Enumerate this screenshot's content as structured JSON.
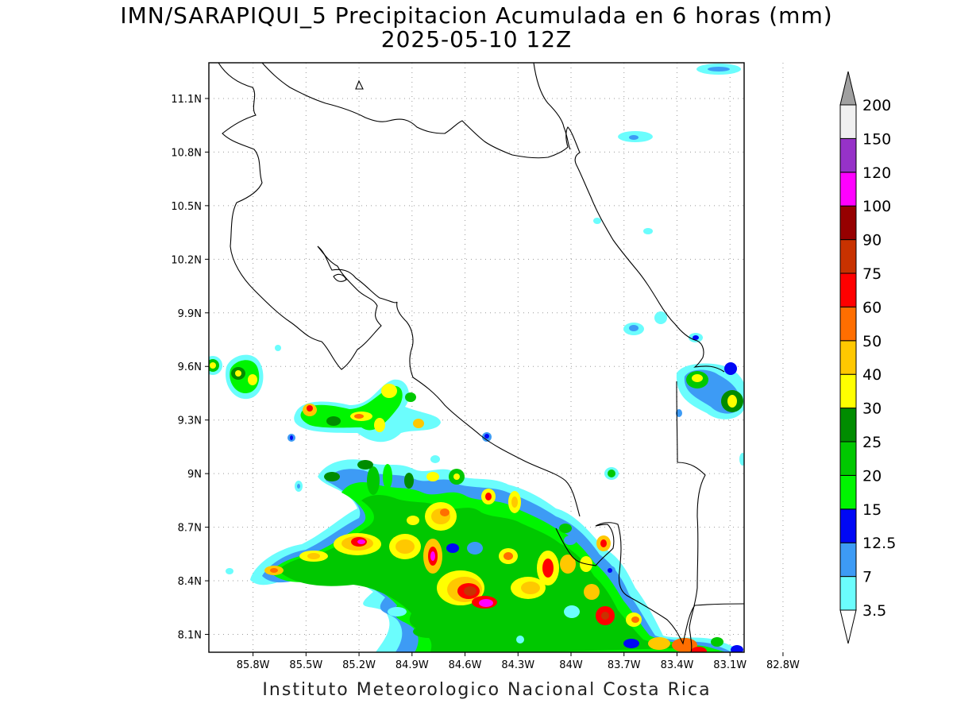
{
  "header": {
    "title": "IMN/SARAPIQUI_5 Precipitacion Acumulada en 6 horas (mm)",
    "subtitle": "2025-05-10 12Z"
  },
  "footer": {
    "credit": "Instituto Meteorologico Nacional Costa Rica"
  },
  "map": {
    "lat_ticks": [
      "11.1N",
      "10.8N",
      "10.5N",
      "10.2N",
      "9.9N",
      "9.6N",
      "9.3N",
      "9N",
      "8.7N",
      "8.4N",
      "8.1N"
    ],
    "lon_ticks": [
      "85.8W",
      "85.5W",
      "85.2W",
      "84.9W",
      "84.6W",
      "84.3W",
      "84W",
      "83.7W",
      "83.4W",
      "83.1W",
      "82.8W"
    ],
    "lon_range": [
      -86.05,
      -83.02
    ],
    "lat_range": [
      8.0,
      11.3
    ],
    "grid": "dotted"
  },
  "colorbar": {
    "levels": [
      "3.5",
      "7",
      "12.5",
      "15",
      "20",
      "25",
      "30",
      "40",
      "50",
      "60",
      "75",
      "90",
      "100",
      "120",
      "150",
      "200"
    ],
    "colors": [
      "#6bfdfd",
      "#3d9bf5",
      "#0008f5",
      "#00f500",
      "#00c800",
      "#008c00",
      "#ffff00",
      "#ffc800",
      "#ff6e00",
      "#ff0000",
      "#c83200",
      "#960000",
      "#ff00ff",
      "#9632c8",
      "#f0f0f0"
    ],
    "over_color": "#a0a0a0",
    "under_color": "#ffffff"
  }
}
